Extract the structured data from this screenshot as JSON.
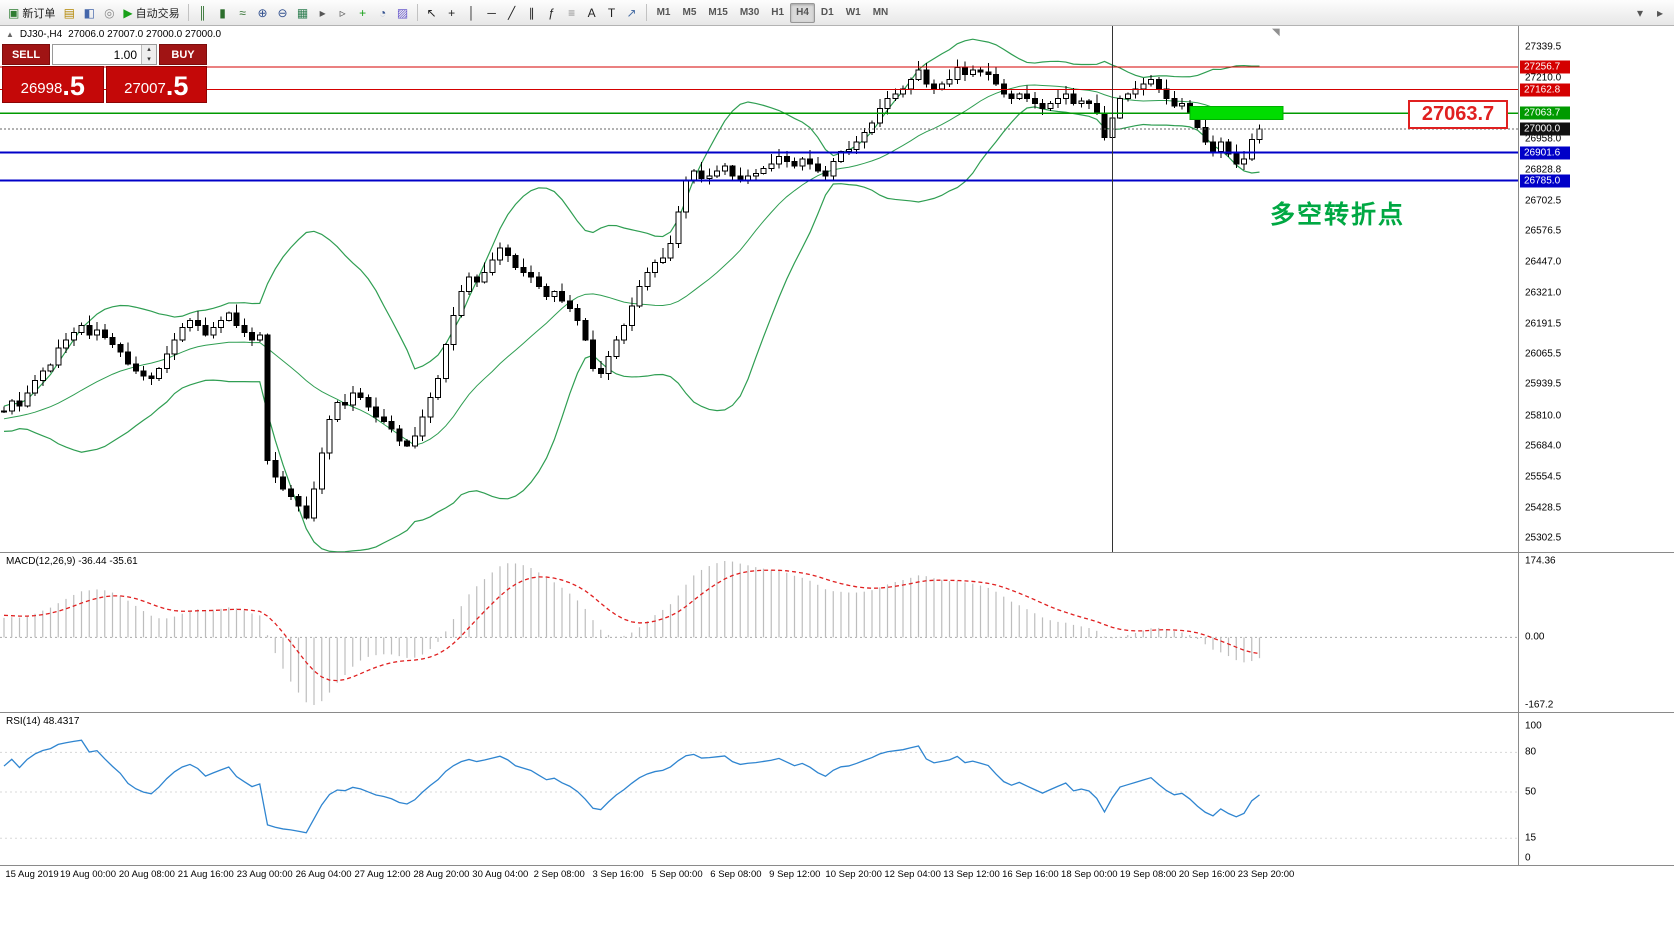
{
  "window": {
    "title_symbol": "DJ30-,H4",
    "ohlc": "27006.0 27007.0 27000.0 27000.0"
  },
  "toolbar": {
    "left_buttons": [
      {
        "name": "new-order-button",
        "glyph": "▣",
        "glyph_color": "#2e7d32",
        "label": "新订单"
      },
      {
        "name": "chart-window-icon",
        "glyph": "▤",
        "glyph_color": "#b38600"
      },
      {
        "name": "profiles-icon",
        "glyph": "◧",
        "glyph_color": "#4466aa"
      },
      {
        "name": "refresh-icon",
        "glyph": "◎",
        "glyph_color": "#888888"
      },
      {
        "name": "autotrade-button",
        "glyph": "▶",
        "glyph_color": "#18a018",
        "label": "自动交易"
      }
    ],
    "chart_buttons": [
      {
        "name": "bar-chart-icon",
        "glyph": "║",
        "glyph_color": "#2c6e2c"
      },
      {
        "name": "candle-chart-icon",
        "glyph": "▮",
        "glyph_color": "#2c6e2c"
      },
      {
        "name": "line-chart-icon",
        "glyph": "≈",
        "glyph_color": "#2c6e2c"
      },
      {
        "name": "zoom-in-icon",
        "glyph": "⊕",
        "glyph_color": "#33518f"
      },
      {
        "name": "zoom-out-icon",
        "glyph": "⊖",
        "glyph_color": "#33518f"
      },
      {
        "name": "tile-windows-icon",
        "glyph": "▦",
        "glyph_color": "#2c7d4f"
      },
      {
        "name": "auto-scroll-icon",
        "glyph": "▸",
        "glyph_color": "#555555"
      },
      {
        "name": "chart-shift-icon",
        "glyph": "▹",
        "glyph_color": "#555555"
      },
      {
        "name": "indicators-icon",
        "glyph": "+",
        "glyph_color": "#18a018"
      },
      {
        "name": "periods-icon",
        "glyph": "◔",
        "glyph_color": "#33518f"
      },
      {
        "name": "templates-icon",
        "glyph": "▨",
        "glyph_color": "#6a5acd"
      }
    ],
    "draw_buttons": [
      {
        "name": "cursor-icon",
        "glyph": "↖",
        "glyph_color": "#222222"
      },
      {
        "name": "crosshair-icon",
        "glyph": "+",
        "glyph_color": "#222222"
      },
      {
        "name": "vline-tool-icon",
        "glyph": "│",
        "glyph_color": "#222222"
      },
      {
        "name": "hline-tool-icon",
        "glyph": "─",
        "glyph_color": "#222222"
      },
      {
        "name": "trendline-tool-icon",
        "glyph": "╱",
        "glyph_color": "#222222"
      },
      {
        "name": "channel-tool-icon",
        "glyph": "∥",
        "glyph_color": "#222222"
      },
      {
        "name": "fibo-tool-icon",
        "glyph": "ƒ",
        "glyph_color": "#222222"
      },
      {
        "name": "levels-tool-icon",
        "glyph": "≡",
        "glyph_color": "#8a8a8a"
      },
      {
        "name": "text-tool-icon",
        "glyph": "A",
        "glyph_color": "#222222"
      },
      {
        "name": "label-tool-icon",
        "glyph": "T",
        "glyph_color": "#222222"
      },
      {
        "name": "arrows-tool-icon",
        "glyph": "↗",
        "glyph_color": "#4a6fa5"
      }
    ],
    "timeframes": [
      "M1",
      "M5",
      "M15",
      "M30",
      "H1",
      "H4",
      "D1",
      "W1",
      "MN"
    ],
    "active_timeframe": "H4",
    "right_buttons": [
      {
        "name": "toolbar-more-button",
        "glyph": "▾",
        "glyph_color": "#555555"
      },
      {
        "name": "toolbar-collapse-button",
        "glyph": "▸",
        "glyph_color": "#555555"
      }
    ]
  },
  "trade_panel": {
    "sell_label": "SELL",
    "buy_label": "BUY",
    "volume": "1.00",
    "bid_int": "26998",
    "bid_dec": ".5",
    "ask_int": "27007",
    "ask_dec": ".5"
  },
  "indicators": {
    "macd_label": "MACD(12,26,9) -36.44 -35.61",
    "rsi_label": "RSI(14) 48.4317"
  },
  "annotations": {
    "note": "多空转折点",
    "note_color": "#00a843",
    "big_label": "27063.7",
    "big_label_color": "#e02020"
  },
  "axes": {
    "price_ticks": [
      "27339.5",
      "27210.0",
      "26958.0",
      "26828.8",
      "26702.5",
      "26576.5",
      "26447.0",
      "26321.0",
      "26191.5",
      "26065.5",
      "25939.5",
      "25810.0",
      "25684.0",
      "25554.5",
      "25428.5",
      "25302.5"
    ],
    "price_tags": [
      {
        "text": "27256.7",
        "bg": "#d40000",
        "object": true
      },
      {
        "text": "27162.8",
        "bg": "#d40000",
        "object": true
      },
      {
        "text": "27063.7",
        "bg": "#009a00",
        "object": true
      },
      {
        "text": "27000.0",
        "bg": "#111111",
        "object": false
      },
      {
        "text": "26901.6",
        "bg": "#0000c8",
        "object": true
      },
      {
        "text": "26785.0",
        "bg": "#0000c8",
        "object": true
      }
    ],
    "macd_ticks": [
      "174.36",
      "0.00",
      "-167.2"
    ],
    "rsi_ticks": [
      "100",
      "80",
      "50",
      "15",
      "0"
    ],
    "time_labels": [
      "15 Aug 2019",
      "19 Aug 00:00",
      "20 Aug 08:00",
      "21 Aug 16:00",
      "23 Aug 00:00",
      "26 Aug 04:00",
      "27 Aug 12:00",
      "28 Aug 20:00",
      "30 Aug 04:00",
      "2 Sep 08:00",
      "3 Sep 16:00",
      "5 Sep 00:00",
      "6 Sep 08:00",
      "9 Sep 12:00",
      "10 Sep 20:00",
      "12 Sep 04:00",
      "13 Sep 12:00",
      "16 Sep 16:00",
      "18 Sep 00:00",
      "19 Sep 08:00",
      "20 Sep 16:00",
      "23 Sep 20:00"
    ]
  },
  "overlays": {
    "h_lines": [
      {
        "price": 27256.7,
        "color": "#d40000",
        "w": 1
      },
      {
        "price": 27162.8,
        "color": "#d40000",
        "w": 1
      },
      {
        "price": 27063.7,
        "color": "#009a00",
        "w": 1.5
      },
      {
        "price": 26901.6,
        "color": "#0000c8",
        "w": 2
      },
      {
        "price": 26785.0,
        "color": "#0000c8",
        "w": 2
      }
    ],
    "current_price": {
      "price": 27000.0,
      "color": "#666666"
    },
    "green_rect": {
      "bar_from": 153,
      "bar_to": 165,
      "price_top": 27092,
      "price_bottom": 27038,
      "fill": "#00dd00",
      "stroke": "#00b000"
    },
    "v_line": {
      "bar": 143,
      "color": "#333333"
    }
  },
  "chart_data": {
    "type": "candlestick",
    "symbol": "DJ30-",
    "timeframe": "H4",
    "title": "DJ30-,H4",
    "price_axis_range": [
      25302.5,
      27339.5
    ],
    "grid": false,
    "bollinger": {
      "period": 20,
      "deviation": 2,
      "color": "#2f9e52"
    },
    "macd": {
      "fast": 12,
      "slow": 26,
      "signal": 9,
      "values_label": "-36.44 -35.61",
      "axis_range": [
        -167.2,
        174.36
      ]
    },
    "rsi": {
      "period": 14,
      "value_label": "48.4317",
      "axis_range": [
        0,
        100
      ]
    },
    "warmup_closes": [
      25480,
      25500,
      25490,
      25520,
      25540,
      25530,
      25560,
      25580,
      25570,
      25600,
      25620,
      25610,
      25640,
      25660,
      25650,
      25680,
      25700,
      25690,
      25720,
      25710,
      25730,
      25750,
      25740,
      25760,
      25780,
      25770,
      25790,
      25800,
      25780,
      25800,
      25810,
      25790,
      25810,
      25820,
      25800,
      25820,
      25830,
      25810,
      25820,
      25830
    ],
    "closes": [
      25830,
      25870,
      25850,
      25905,
      25955,
      25995,
      26020,
      26090,
      26125,
      26155,
      26185,
      26145,
      26165,
      26135,
      26105,
      26075,
      26025,
      25995,
      25975,
      25965,
      26005,
      26065,
      26125,
      26175,
      26205,
      26185,
      26145,
      26175,
      26205,
      26235,
      26185,
      26155,
      26125,
      26145,
      25625,
      25555,
      25505,
      25475,
      25435,
      25385,
      25505,
      25655,
      25795,
      25865,
      25855,
      25905,
      25885,
      25845,
      25805,
      25785,
      25755,
      25705,
      25685,
      25725,
      25805,
      25885,
      25965,
      26105,
      26225,
      26325,
      26385,
      26365,
      26405,
      26455,
      26505,
      26475,
      26425,
      26405,
      26385,
      26345,
      26305,
      26325,
      26285,
      26255,
      26205,
      26125,
      26005,
      25985,
      26055,
      26125,
      26185,
      26265,
      26345,
      26405,
      26445,
      26465,
      26525,
      26655,
      26785,
      26825,
      26795,
      26805,
      26825,
      26845,
      26805,
      26785,
      26805,
      26815,
      26835,
      26855,
      26885,
      26865,
      26845,
      26875,
      26855,
      26825,
      26805,
      26865,
      26905,
      26915,
      26945,
      26985,
      27025,
      27085,
      27125,
      27145,
      27165,
      27205,
      27245,
      27185,
      27165,
      27185,
      27205,
      27255,
      27225,
      27245,
      27235,
      27225,
      27185,
      27145,
      27125,
      27145,
      27125,
      27105,
      27085,
      27105,
      27125,
      27145,
      27105,
      27115,
      27105,
      27065,
      26965,
      27045,
      27125,
      27145,
      27165,
      27185,
      27205,
      27165,
      27125,
      27095,
      27105,
      27065,
      27005,
      26945,
      26905,
      26945,
      26895,
      26855,
      26875,
      26955,
      27000
    ]
  }
}
